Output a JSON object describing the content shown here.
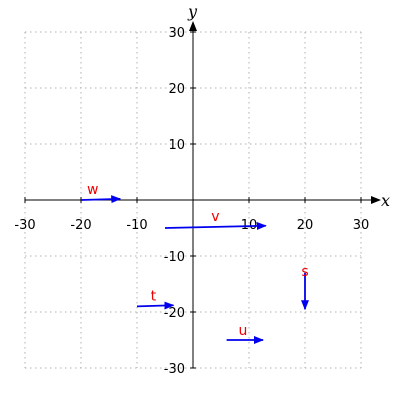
{
  "chart_data": {
    "type": "vector-field",
    "title": "",
    "xlabel": "x",
    "ylabel": "y",
    "xlim": [
      -30,
      30
    ],
    "ylim": [
      -30,
      30
    ],
    "x_ticks": [
      -30,
      -20,
      -10,
      10,
      20,
      30
    ],
    "y_ticks": [
      -30,
      -20,
      -10,
      10,
      20,
      30
    ],
    "grid": true,
    "grid_style": "dotted",
    "vector_color": "#0000ee",
    "label_color": "#ee0000",
    "vectors": [
      {
        "name": "w",
        "tail": [
          -20,
          0
        ],
        "head": [
          -13,
          0.2
        ]
      },
      {
        "name": "v",
        "tail": [
          -5,
          -5
        ],
        "head": [
          13,
          -4.6
        ]
      },
      {
        "name": "t",
        "tail": [
          -10,
          -19
        ],
        "head": [
          -3.5,
          -18.8
        ]
      },
      {
        "name": "u",
        "tail": [
          6,
          -25
        ],
        "head": [
          12.5,
          -25
        ]
      },
      {
        "name": "s",
        "tail": [
          20,
          -13
        ],
        "head": [
          20,
          -19.5
        ]
      }
    ]
  }
}
